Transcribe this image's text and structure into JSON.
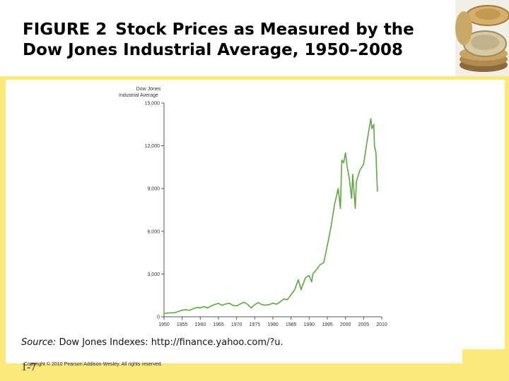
{
  "slide": {
    "figure_number": "FIGURE 2",
    "title": "Stock Prices as Measured by the Dow Jones Industrial Average, 1950–2008",
    "source_label": "Source:",
    "source_text": "Dow Jones Indexes: http://finance.yahoo.com/?u.",
    "copyright": "Copyright © 2010 Pearson Addison-Wesley. All rights reserved.",
    "slide_number": "1-7"
  },
  "colors": {
    "band": "#fde97a",
    "line": "#5fa745",
    "axis": "#555555"
  },
  "chart_data": {
    "type": "line",
    "title": "",
    "ylabel": "Dow Jones Industrial Average",
    "ylabel_lines": [
      "Dow Jones",
      "Industrial Average"
    ],
    "xlabel": "",
    "xlim": [
      1950,
      2010
    ],
    "ylim": [
      0,
      15000
    ],
    "x_ticks": [
      1950,
      1955,
      1960,
      1965,
      1970,
      1975,
      1980,
      1985,
      1990,
      1995,
      2000,
      2005,
      2010
    ],
    "x_tick_labels": [
      "1950",
      "1955",
      "1960",
      "1965",
      "1970",
      "1975",
      "1980",
      "1985",
      "1990",
      "1995",
      "2000",
      "2005",
      "2010"
    ],
    "y_ticks": [
      0,
      3000,
      6000,
      9000,
      12000,
      15000
    ],
    "y_tick_labels": [
      "0",
      "3,000",
      "6,000",
      "9,000",
      "12,000",
      "15,000"
    ],
    "grid": false,
    "series": [
      {
        "name": "Dow Jones Industrial Average",
        "x": [
          1950,
          1951,
          1952,
          1953,
          1954,
          1955,
          1956,
          1957,
          1958,
          1959,
          1960,
          1961,
          1962,
          1963,
          1964,
          1965,
          1966,
          1967,
          1968,
          1969,
          1970,
          1971,
          1972,
          1973,
          1974,
          1975,
          1976,
          1977,
          1978,
          1979,
          1980,
          1981,
          1982,
          1983,
          1984,
          1985,
          1986,
          1987,
          1987.8,
          1988,
          1989,
          1990,
          1990.7,
          1991,
          1992,
          1993,
          1994,
          1995,
          1996,
          1997,
          1998,
          1998.6,
          1999,
          1999.5,
          2000,
          2000.5,
          2001,
          2001.7,
          2002,
          2002.7,
          2003,
          2004,
          2005,
          2006,
          2007,
          2007.3,
          2007.8,
          2008,
          2008.4,
          2008.8
        ],
        "values": [
          230,
          260,
          280,
          280,
          380,
          460,
          500,
          450,
          560,
          660,
          630,
          720,
          620,
          760,
          870,
          940,
          800,
          900,
          950,
          800,
          760,
          900,
          1020,
          880,
          620,
          850,
          1000,
          850,
          820,
          850,
          960,
          880,
          1050,
          1250,
          1200,
          1550,
          1900,
          2600,
          1900,
          2100,
          2750,
          2900,
          2450,
          3000,
          3300,
          3650,
          3800,
          5000,
          6300,
          7900,
          9000,
          7600,
          11000,
          10800,
          11500,
          10500,
          9800,
          8300,
          10000,
          7600,
          9500,
          10300,
          10700,
          12400,
          13900,
          13200,
          13500,
          12000,
          11500,
          8800
        ]
      }
    ]
  }
}
